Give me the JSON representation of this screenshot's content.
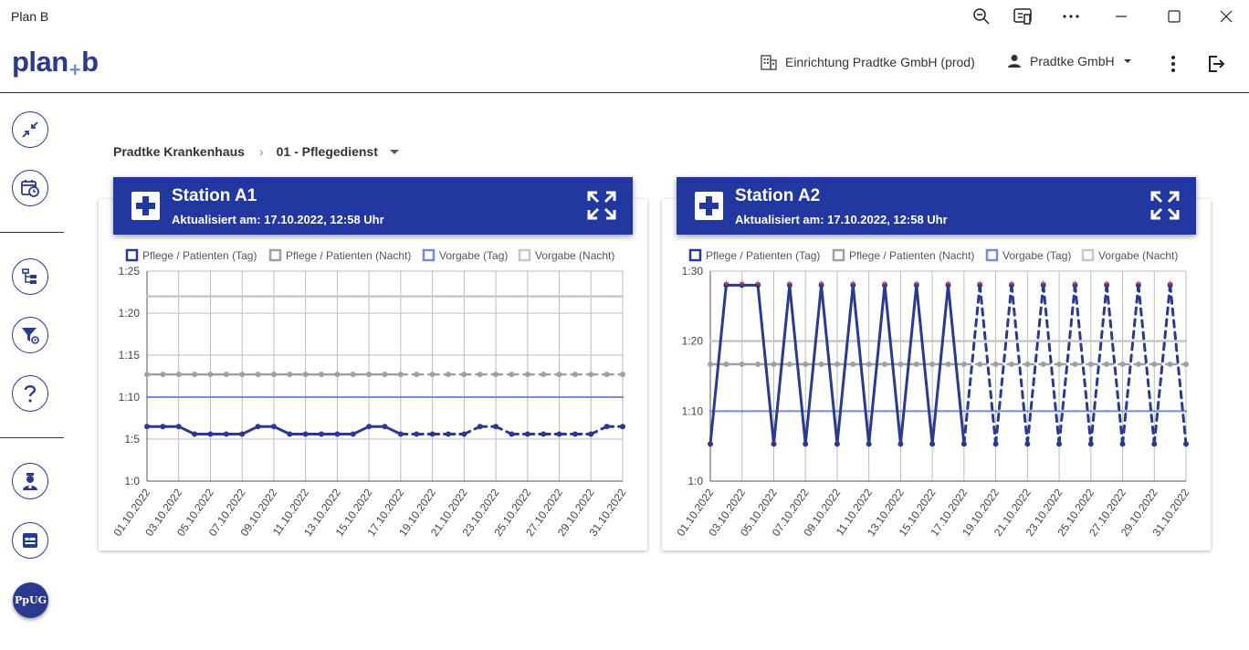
{
  "window": {
    "title": "Plan B"
  },
  "header": {
    "logo_left": "plan",
    "logo_plus": "+",
    "logo_right": "b",
    "facility": "Einrichtung Pradtke GmbH (prod)",
    "user": "Pradtke GmbH",
    "icons": [
      "zoom-out-icon",
      "reader-icon",
      "more-icon",
      "minimize-icon",
      "maximize-icon",
      "close-icon",
      "building-icon",
      "person-icon",
      "caret-down-icon",
      "vertical-more-icon",
      "logout-icon"
    ]
  },
  "sidebar": {
    "ppug_label": "PpUG"
  },
  "breadcrumb": {
    "root": "Pradtke Krankenhaus",
    "current": "01 - Pflegedienst"
  },
  "colors": {
    "primary": "#2337a0",
    "tag": "#2a3a8f",
    "nacht": "#a0a0a0",
    "vorgabe_tag": "#7a8ad0",
    "vorgabe_nacht": "#c8c8c8",
    "star": "#e03030"
  },
  "cards": [
    {
      "title": "Station A1",
      "updated": "Aktualisiert am: 17.10.2022, 12:58 Uhr",
      "chart_data": {
        "type": "line",
        "legend": [
          "Pflege / Patienten (Tag)",
          "Pflege / Patienten (Nacht)",
          "Vorgabe (Tag)",
          "Vorgabe (Nacht)"
        ],
        "y_ticks": [
          "1:0",
          "1:5",
          "1:10",
          "1:15",
          "1:20",
          "1:25"
        ],
        "ylim": [
          0,
          25
        ],
        "x_labels": [
          "01.10.2022",
          "03.10.2022",
          "05.10.2022",
          "07.10.2022",
          "09.10.2022",
          "11.10.2022",
          "13.10.2022",
          "15.10.2022",
          "17.10.2022",
          "19.10.2022",
          "21.10.2022",
          "23.10.2022",
          "25.10.2022",
          "27.10.2022",
          "29.10.2022",
          "31.10.2022"
        ],
        "series": [
          {
            "name": "Pflege / Patienten (Tag)",
            "values": [
              6.5,
              6.5,
              6.5,
              5.6,
              5.6,
              5.6,
              5.6,
              6.5,
              6.5,
              5.6,
              5.6,
              5.6,
              5.6,
              5.6,
              6.5,
              6.5,
              5.6,
              5.6,
              5.6,
              5.6,
              5.6,
              6.5,
              6.5,
              5.6,
              5.6,
              5.6,
              5.6,
              5.6,
              5.6,
              6.5,
              6.5
            ]
          },
          {
            "name": "Pflege / Patienten (Nacht)",
            "values": [
              12.7,
              12.7,
              12.7,
              12.7,
              12.7,
              12.7,
              12.7,
              12.7,
              12.7,
              12.7,
              12.7,
              12.7,
              12.7,
              12.7,
              12.7,
              12.7,
              12.7,
              12.7,
              12.7,
              12.7,
              12.7,
              12.7,
              12.7,
              12.7,
              12.7,
              12.7,
              12.7,
              12.7,
              12.7,
              12.7,
              12.7
            ]
          },
          {
            "name": "Vorgabe (Tag)",
            "values": [
              10,
              10,
              10,
              10,
              10,
              10,
              10,
              10,
              10,
              10,
              10,
              10,
              10,
              10,
              10,
              10,
              10,
              10,
              10,
              10,
              10,
              10,
              10,
              10,
              10,
              10,
              10,
              10,
              10,
              10,
              10
            ]
          },
          {
            "name": "Vorgabe (Nacht)",
            "values": [
              22,
              22,
              22,
              22,
              22,
              22,
              22,
              22,
              22,
              22,
              22,
              22,
              22,
              22,
              22,
              22,
              22,
              22,
              22,
              22,
              22,
              22,
              22,
              22,
              22,
              22,
              22,
              22,
              22,
              22,
              22
            ]
          }
        ],
        "dashed_from_day": 17
      }
    },
    {
      "title": "Station A2",
      "updated": "Aktualisiert am: 17.10.2022, 12:58 Uhr",
      "chart_data": {
        "type": "line",
        "legend": [
          "Pflege / Patienten (Tag)",
          "Pflege / Patienten (Nacht)",
          "Vorgabe (Tag)",
          "Vorgabe (Nacht)"
        ],
        "y_ticks": [
          "1:0",
          "1:10",
          "1:20",
          "1:30"
        ],
        "ylim": [
          0,
          30
        ],
        "x_labels": [
          "01.10.2022",
          "03.10.2022",
          "05.10.2022",
          "07.10.2022",
          "09.10.2022",
          "11.10.2022",
          "13.10.2022",
          "15.10.2022",
          "17.10.2022",
          "19.10.2022",
          "21.10.2022",
          "23.10.2022",
          "25.10.2022",
          "27.10.2022",
          "29.10.2022",
          "31.10.2022"
        ],
        "series": [
          {
            "name": "Pflege / Patienten (Tag)",
            "values": [
              5.3,
              28,
              28,
              28,
              5.3,
              28,
              5.3,
              28,
              5.3,
              28,
              5.3,
              28,
              5.3,
              28,
              5.3,
              28,
              5.3,
              28,
              5.3,
              28,
              5.3,
              28,
              5.3,
              28,
              5.3,
              28,
              5.3,
              28,
              5.3,
              28,
              5.3
            ]
          },
          {
            "name": "Pflege / Patienten (Nacht)",
            "values": [
              16.7,
              16.7,
              16.7,
              16.7,
              16.7,
              16.7,
              16.7,
              16.7,
              16.7,
              16.7,
              16.7,
              16.7,
              16.7,
              16.7,
              16.7,
              16.7,
              16.7,
              16.7,
              16.7,
              16.7,
              16.7,
              16.7,
              16.7,
              16.7,
              16.7,
              16.7,
              16.7,
              16.7,
              16.7,
              16.7,
              16.7
            ]
          },
          {
            "name": "Vorgabe (Tag)",
            "values": [
              10,
              10,
              10,
              10,
              10,
              10,
              10,
              10,
              10,
              10,
              10,
              10,
              10,
              10,
              10,
              10,
              10,
              10,
              10,
              10,
              10,
              10,
              10,
              10,
              10,
              10,
              10,
              10,
              10,
              10,
              10
            ]
          },
          {
            "name": "Vorgabe (Nacht)",
            "values": [
              20,
              20,
              20,
              20,
              20,
              20,
              20,
              20,
              20,
              20,
              20,
              20,
              20,
              20,
              20,
              20,
              20,
              20,
              20,
              20,
              20,
              20,
              20,
              20,
              20,
              20,
              20,
              20,
              20,
              20,
              20
            ]
          }
        ],
        "dashed_from_day": 17
      }
    }
  ]
}
